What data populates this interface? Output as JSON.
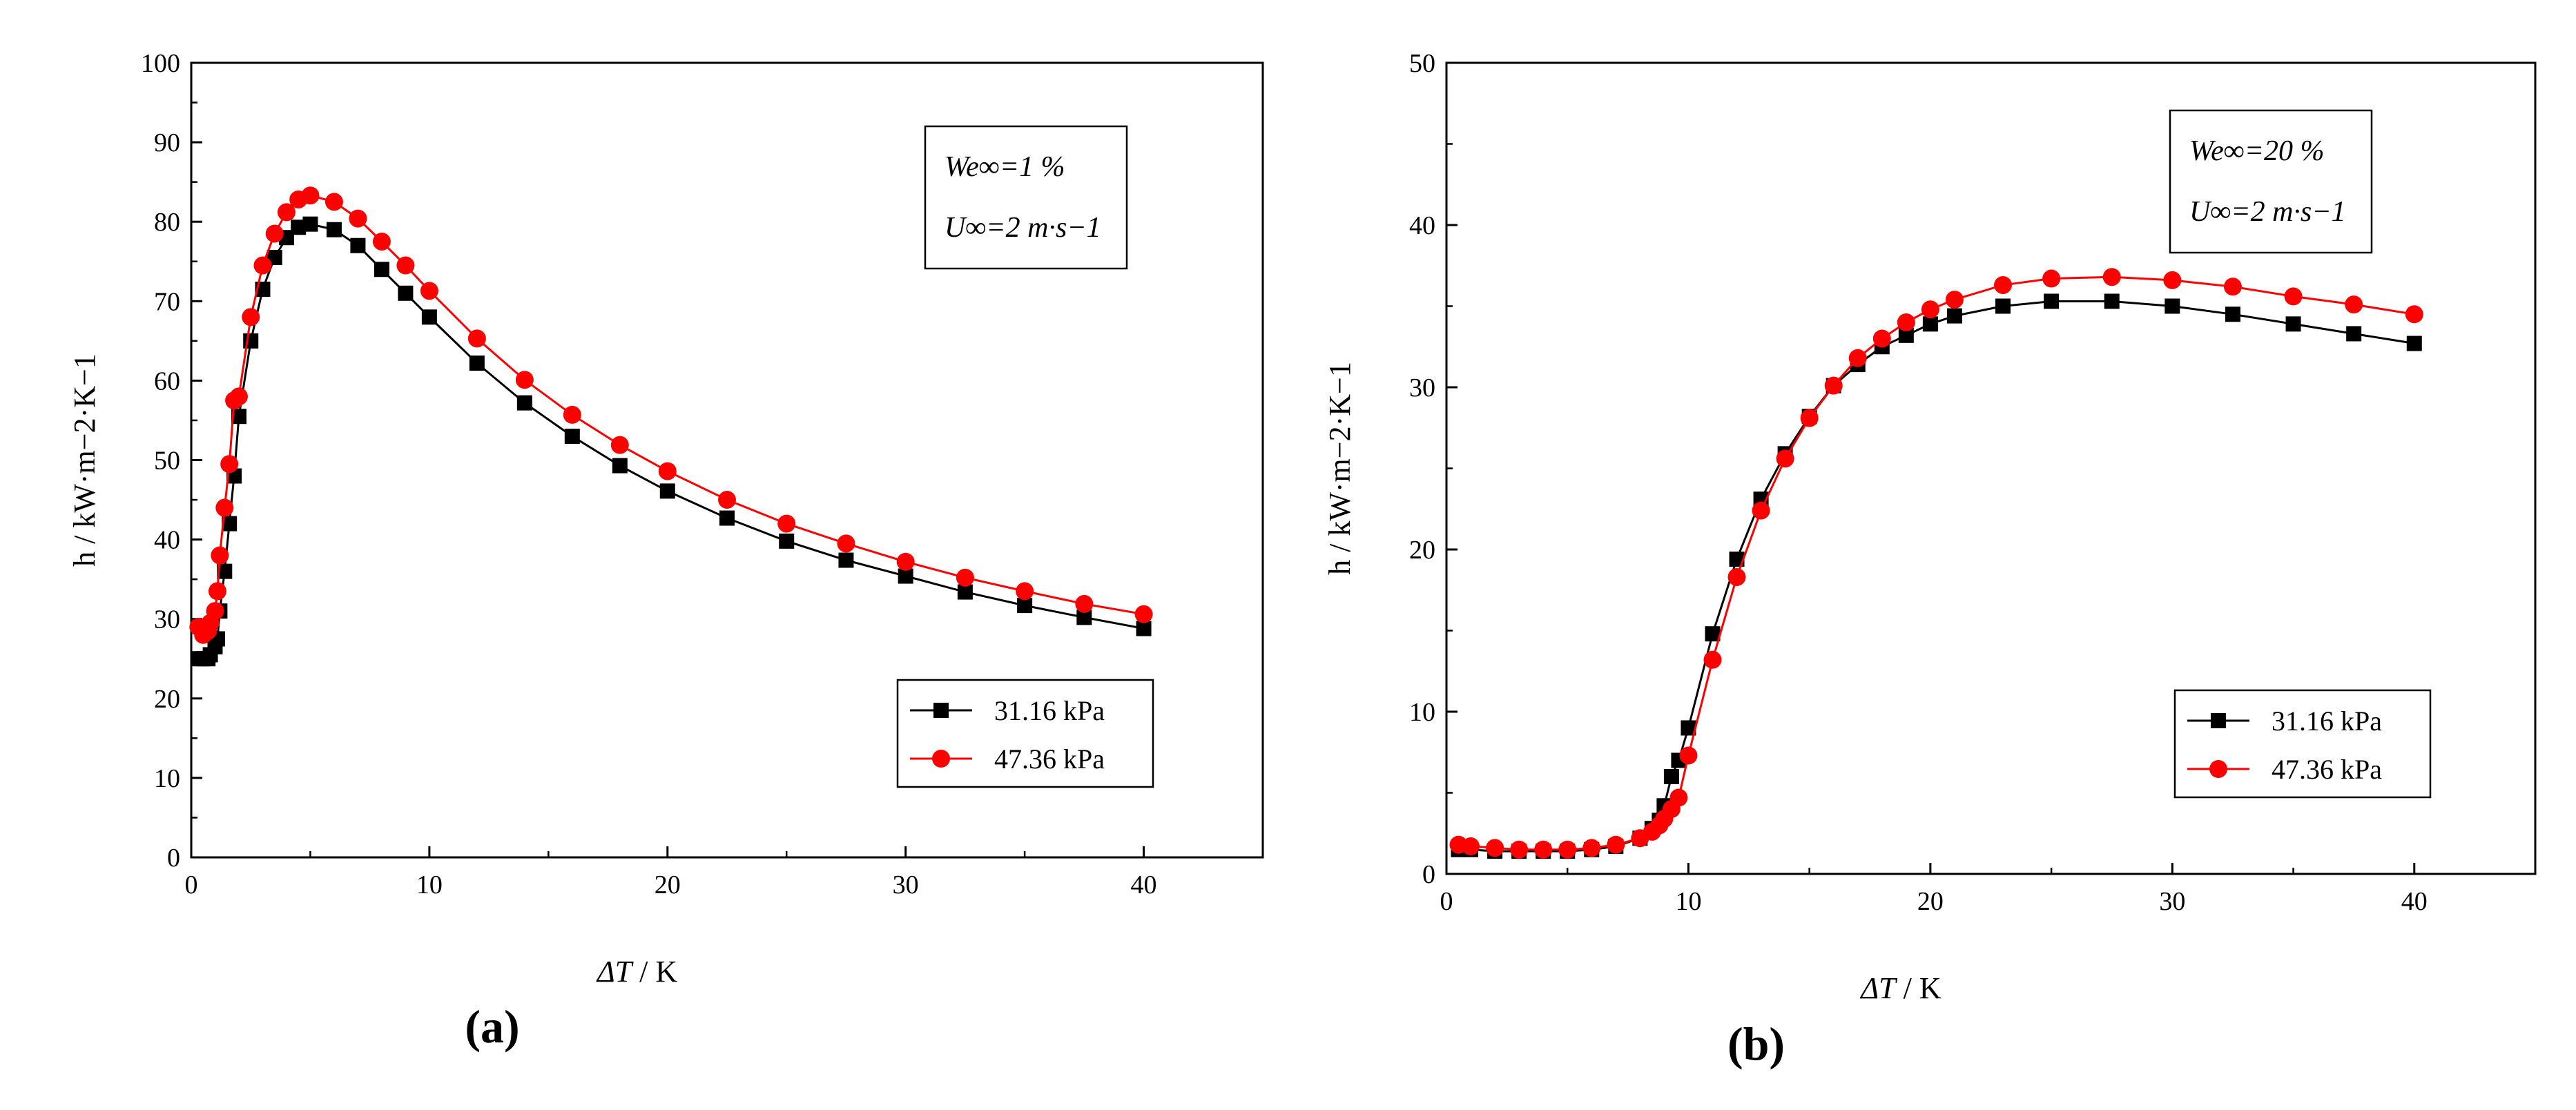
{
  "chart_data": [
    {
      "type": "line",
      "panel_label": "(a)",
      "xlabel_symbol": "ΔT",
      "xlabel_unit": " / K",
      "ylabel": "h / kW·m−2·K−1",
      "xlim": [
        0,
        45
      ],
      "ylim": [
        0,
        100
      ],
      "xticks": [
        0,
        10,
        20,
        30,
        40
      ],
      "yticks": [
        0,
        10,
        20,
        30,
        40,
        50,
        60,
        70,
        80,
        90,
        100
      ],
      "annotation": {
        "line1": "We∞=1 %",
        "line2": "U∞=2 m·s−1"
      },
      "legend_position": "bottom-right",
      "series": [
        {
          "name": "31.16 kPa",
          "color": "#000000",
          "marker": "square",
          "x": [
            0.3,
            0.5,
            0.7,
            0.8,
            1.0,
            1.1,
            1.2,
            1.4,
            1.6,
            1.8,
            2.0,
            2.5,
            3,
            3.5,
            4,
            4.5,
            5,
            6,
            7,
            8,
            9,
            10,
            12,
            14,
            16,
            18,
            20,
            22.5,
            25,
            27.5,
            30,
            32.5,
            35,
            37.5,
            40
          ],
          "y": [
            25,
            25,
            25,
            25.5,
            26.5,
            27.5,
            31,
            36,
            42,
            48,
            55.5,
            65,
            71.5,
            75.5,
            78,
            79.3,
            79.7,
            79,
            77,
            74,
            71,
            68,
            62.2,
            57.2,
            53,
            49.3,
            46.1,
            42.7,
            39.8,
            37.4,
            35.4,
            33.4,
            31.7,
            30.2,
            28.8
          ]
        },
        {
          "name": "47.36 kPa",
          "color": "#ff0000",
          "marker": "circle",
          "x": [
            0.3,
            0.5,
            0.7,
            0.8,
            1.0,
            1.1,
            1.2,
            1.4,
            1.6,
            1.8,
            2.0,
            2.5,
            3,
            3.5,
            4,
            4.5,
            5,
            6,
            7,
            8,
            9,
            10,
            12,
            14,
            16,
            18,
            20,
            22.5,
            25,
            27.5,
            30,
            32.5,
            35,
            37.5,
            40
          ],
          "y": [
            29,
            28,
            28.5,
            29.5,
            31,
            33.5,
            38,
            44,
            49.5,
            57.5,
            58,
            68,
            74.5,
            78.5,
            81.2,
            82.8,
            83.3,
            82.5,
            80.4,
            77.5,
            74.5,
            71.3,
            65.3,
            60.1,
            55.7,
            51.9,
            48.6,
            45,
            42,
            39.5,
            37.2,
            35.2,
            33.5,
            31.9,
            30.6
          ]
        }
      ]
    },
    {
      "type": "line",
      "panel_label": "(b)",
      "xlabel_symbol": "ΔT",
      "xlabel_unit": " / K",
      "ylabel": "h / kW·m−2·K−1",
      "xlim": [
        0,
        45
      ],
      "ylim": [
        0,
        50
      ],
      "xticks": [
        0,
        10,
        20,
        30,
        40
      ],
      "yticks": [
        0,
        10,
        20,
        30,
        40,
        50
      ],
      "annotation": {
        "line1": "We∞=20 %",
        "line2": "U∞=2 m·s−1"
      },
      "legend_position": "bottom-right",
      "series": [
        {
          "name": "31.16 kPa",
          "color": "#000000",
          "marker": "square",
          "x": [
            0.5,
            1,
            2,
            3,
            4,
            5,
            6,
            7,
            8,
            8.5,
            8.8,
            9.0,
            9.3,
            9.6,
            10,
            11,
            12,
            13,
            14,
            15,
            16,
            17,
            18,
            19,
            20,
            21,
            23,
            25,
            27.5,
            30,
            32.5,
            35,
            37.5,
            40
          ],
          "y": [
            1.5,
            1.5,
            1.4,
            1.4,
            1.4,
            1.4,
            1.5,
            1.7,
            2.2,
            2.8,
            3.3,
            4.2,
            6,
            7,
            9,
            14.8,
            19.4,
            23.1,
            25.9,
            28.2,
            30.1,
            31.4,
            32.5,
            33.2,
            33.9,
            34.4,
            35,
            35.3,
            35.3,
            35,
            34.5,
            33.9,
            33.3,
            32.7
          ]
        },
        {
          "name": "47.36 kPa",
          "color": "#ff0000",
          "marker": "circle",
          "x": [
            0.5,
            1,
            2,
            3,
            4,
            5,
            6,
            7,
            8,
            8.5,
            8.8,
            9.0,
            9.3,
            9.6,
            10,
            11,
            12,
            13,
            14,
            15,
            16,
            17,
            18,
            19,
            20,
            21,
            23,
            25,
            27.5,
            30,
            32.5,
            35,
            37.5,
            40
          ],
          "y": [
            1.8,
            1.7,
            1.6,
            1.5,
            1.5,
            1.5,
            1.6,
            1.8,
            2.2,
            2.6,
            3.0,
            3.4,
            4,
            4.7,
            7.3,
            13.2,
            18.3,
            22.4,
            25.6,
            28.1,
            30.1,
            31.8,
            33,
            34,
            34.8,
            35.4,
            36.3,
            36.7,
            36.8,
            36.6,
            36.2,
            35.6,
            35.1,
            34.5
          ]
        }
      ]
    }
  ]
}
